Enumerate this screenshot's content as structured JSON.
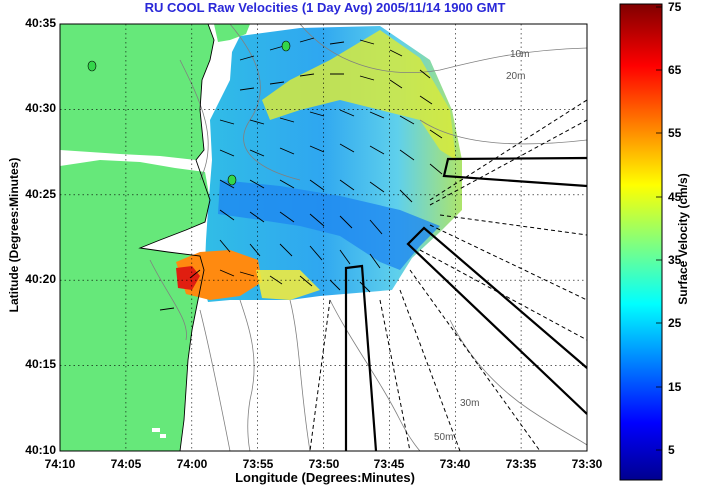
{
  "chart_data": {
    "type": "heatmap",
    "title": "RU COOL Raw Velocities (1 Day Avg) 2005/11/14 1900 GMT",
    "xlabel": "Longitude (Degrees:Minutes)",
    "ylabel": "Latitude (Degrees:Minutes)",
    "colorbar_label": "Surface Velocity (cm/s)",
    "x_ticks": [
      "74:10",
      "74:05",
      "74:00",
      "73:55",
      "73:50",
      "73:45",
      "73:40",
      "73:35",
      "73:30"
    ],
    "y_ticks": [
      "40:35",
      "40:30",
      "40:25",
      "40:20",
      "40:15",
      "40:10"
    ],
    "colorbar_ticks": [
      "75",
      "65",
      "55",
      "45",
      "35",
      "25",
      "15",
      "5"
    ],
    "colorbar_range": [
      0,
      75
    ],
    "xlim": [
      "74:10",
      "73:30"
    ],
    "ylim": [
      "40:10",
      "40:35"
    ],
    "grid": true,
    "contour_labels": [
      "10m",
      "20m",
      "30m",
      "50m"
    ],
    "colormap": "jet"
  }
}
